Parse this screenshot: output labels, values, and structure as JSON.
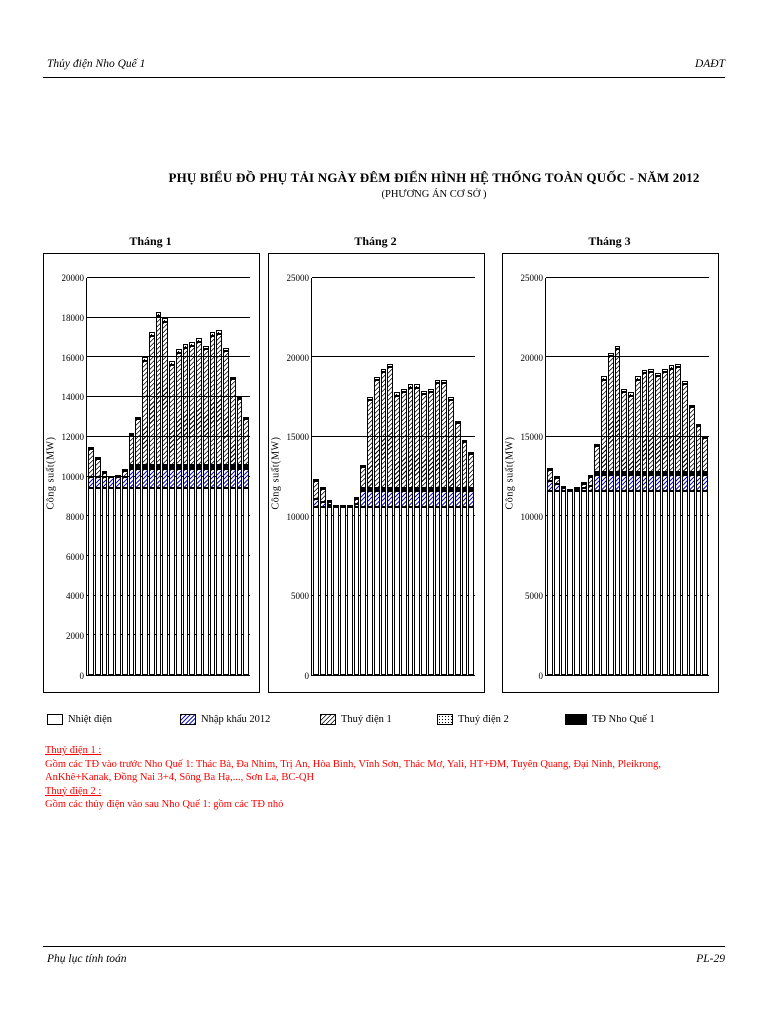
{
  "page": {
    "header_left": "Thủy điện Nho Quế 1",
    "header_right": "DAĐT",
    "title": "PHỤ BIỂU ĐỒ PHỤ TẢI NGÀY ĐÊM ĐIỂN HÌNH HỆ THỐNG TOÀN QUỐC - NĂM 2012",
    "subtitle": "(PHƯƠNG ÁN CƠ SỞ )",
    "footer_left": "Phụ lục tính toán",
    "footer_right": "PL-29"
  },
  "legend": [
    {
      "label": "Nhiệt điện",
      "pattern": "thermal"
    },
    {
      "label": "Nhập khẩu 2012",
      "pattern": "import",
      "color": "#1818c8"
    },
    {
      "label": "Thuỷ điện 1",
      "pattern": "hydro1"
    },
    {
      "label": "Thuỷ điện 2",
      "pattern": "hydro2"
    },
    {
      "label": "TĐ Nho Quế 1",
      "pattern": "nhoque",
      "color": "#000000"
    }
  ],
  "notes": [
    {
      "heading": "Thuỷ điện 1 :",
      "body": "Gồm các TĐ vào trước Nho Quế 1: Thác Bà, Đa Nhim, Trị An, Hòa Bình, Vĩnh Sơn, Thác Mơ, Yali, HT+ĐM, Tuyên Quang, Đại Ninh, Pleikrong,",
      "body2": " AnKhê+Kanak, Đồng Nai 3+4, Sông Ba Hạ,..., Sơn La, BC-QH"
    },
    {
      "heading": "Thuỷ điện 2 :",
      "body": "Gồm các thủy điện vào sau Nho Quế 1: gồm các TĐ nhỏ"
    }
  ],
  "chart_data": [
    {
      "type": "bar",
      "stacked": true,
      "title": "Tháng 1",
      "ylabel": "Công suất(MW)",
      "ylim": [
        0,
        20000
      ],
      "ytick_step": 2000,
      "grid": true,
      "x_labels_visible": false,
      "x": [
        1,
        2,
        3,
        4,
        5,
        6,
        7,
        8,
        9,
        10,
        11,
        12,
        13,
        14,
        15,
        16,
        17,
        18,
        19,
        20,
        21,
        22,
        23,
        24
      ],
      "series": [
        {
          "name": "Nhiệt điện",
          "pattern": "thermal",
          "values": [
            9400,
            9400,
            9400,
            9400,
            9400,
            9400,
            9400,
            9400,
            9400,
            9400,
            9400,
            9400,
            9400,
            9400,
            9400,
            9400,
            9400,
            9400,
            9400,
            9400,
            9400,
            9400,
            9400,
            9400
          ]
        },
        {
          "name": "Nhập khẩu 2012",
          "pattern": "import",
          "values": [
            600,
            600,
            600,
            600,
            600,
            600,
            1000,
            1000,
            1000,
            1000,
            1000,
            1000,
            1000,
            1000,
            1000,
            1000,
            1000,
            1000,
            1000,
            1000,
            1000,
            1000,
            1000,
            1000
          ]
        },
        {
          "name": "TĐ Nho Quế 1",
          "pattern": "nhoque",
          "values": [
            0,
            0,
            0,
            0,
            0,
            0,
            200,
            200,
            200,
            200,
            200,
            200,
            200,
            200,
            200,
            200,
            200,
            200,
            200,
            200,
            200,
            200,
            200,
            200
          ]
        },
        {
          "name": "Thuỷ điện 1",
          "pattern": "hydro1",
          "values": [
            1400,
            900,
            200,
            0,
            0,
            300,
            1500,
            2300,
            5200,
            6500,
            7500,
            7200,
            5000,
            5600,
            5900,
            6000,
            6200,
            5800,
            6500,
            6600,
            5700,
            4300,
            3300,
            2300
          ]
        },
        {
          "name": "Thuỷ điện 2",
          "pattern": "hydro2",
          "values": [
            100,
            100,
            100,
            0,
            100,
            100,
            100,
            100,
            200,
            200,
            200,
            200,
            200,
            200,
            200,
            200,
            200,
            200,
            200,
            200,
            200,
            100,
            100,
            100
          ]
        }
      ]
    },
    {
      "type": "bar",
      "stacked": true,
      "title": "Tháng 2",
      "ylabel": "Công suất(MW)",
      "ylim": [
        0,
        25000
      ],
      "ytick_step": 5000,
      "grid": true,
      "x_labels_visible": false,
      "x": [
        1,
        2,
        3,
        4,
        5,
        6,
        7,
        8,
        9,
        10,
        11,
        12,
        13,
        14,
        15,
        16,
        17,
        18,
        19,
        20,
        21,
        22,
        23,
        24
      ],
      "series": [
        {
          "name": "Nhiệt điện",
          "pattern": "thermal",
          "values": [
            10600,
            10600,
            10600,
            10600,
            10600,
            10600,
            10600,
            10600,
            10600,
            10600,
            10600,
            10600,
            10600,
            10600,
            10600,
            10600,
            10600,
            10600,
            10600,
            10600,
            10600,
            10600,
            10600,
            10600
          ]
        },
        {
          "name": "Nhập khẩu 2012",
          "pattern": "import",
          "values": [
            500,
            300,
            100,
            100,
            100,
            100,
            200,
            1000,
            1000,
            1000,
            1000,
            1000,
            1000,
            1000,
            1000,
            1000,
            1000,
            1000,
            1000,
            1000,
            1000,
            1000,
            1000,
            1000
          ]
        },
        {
          "name": "TĐ Nho Quế 1",
          "pattern": "nhoque",
          "values": [
            0,
            0,
            0,
            0,
            0,
            0,
            0,
            200,
            200,
            200,
            200,
            200,
            200,
            200,
            200,
            200,
            200,
            200,
            200,
            200,
            200,
            200,
            200,
            200
          ]
        },
        {
          "name": "Thuỷ điện 1",
          "pattern": "hydro1",
          "values": [
            1100,
            800,
            200,
            0,
            0,
            0,
            300,
            1300,
            5500,
            6800,
            7300,
            7600,
            5800,
            6000,
            6300,
            6300,
            5900,
            6000,
            6600,
            6600,
            5500,
            4100,
            2900,
            2100
          ]
        },
        {
          "name": "Thuỷ điện 2",
          "pattern": "hydro2",
          "values": [
            100,
            100,
            100,
            0,
            0,
            0,
            100,
            100,
            200,
            200,
            200,
            200,
            200,
            200,
            200,
            200,
            200,
            200,
            200,
            200,
            200,
            100,
            100,
            100
          ]
        }
      ]
    },
    {
      "type": "bar",
      "stacked": true,
      "title": "Tháng 3",
      "ylabel": "Công suất(MW)",
      "ylim": [
        0,
        25000
      ],
      "ytick_step": 5000,
      "grid": true,
      "x_labels_visible": false,
      "x": [
        1,
        2,
        3,
        4,
        5,
        6,
        7,
        8,
        9,
        10,
        11,
        12,
        13,
        14,
        15,
        16,
        17,
        18,
        19,
        20,
        21,
        22,
        23,
        24
      ],
      "series": [
        {
          "name": "Nhiệt điện",
          "pattern": "thermal",
          "values": [
            11600,
            11600,
            11600,
            11600,
            11600,
            11600,
            11600,
            11600,
            11600,
            11600,
            11600,
            11600,
            11600,
            11600,
            11600,
            11600,
            11600,
            11600,
            11600,
            11600,
            11600,
            11600,
            11600,
            11600
          ]
        },
        {
          "name": "Nhập khẩu 2012",
          "pattern": "import",
          "values": [
            600,
            400,
            200,
            100,
            100,
            200,
            300,
            1000,
            1000,
            1000,
            1000,
            1000,
            1000,
            1000,
            1000,
            1000,
            1000,
            1000,
            1000,
            1000,
            1000,
            1000,
            1000,
            1000
          ]
        },
        {
          "name": "TĐ Nho Quế 1",
          "pattern": "nhoque",
          "values": [
            0,
            0,
            0,
            0,
            0,
            0,
            0,
            200,
            200,
            200,
            200,
            200,
            200,
            200,
            200,
            200,
            200,
            200,
            200,
            200,
            200,
            200,
            200,
            200
          ]
        },
        {
          "name": "Thuỷ điện 1",
          "pattern": "hydro1",
          "values": [
            700,
            400,
            0,
            0,
            0,
            200,
            600,
            1600,
            5800,
            7300,
            7700,
            5000,
            4800,
            5800,
            6200,
            6300,
            6000,
            6300,
            6500,
            6600,
            5500,
            4100,
            2900,
            2100
          ]
        },
        {
          "name": "Thuỷ điện 2",
          "pattern": "hydro2",
          "values": [
            100,
            100,
            100,
            0,
            100,
            100,
            100,
            100,
            200,
            200,
            200,
            200,
            200,
            200,
            200,
            200,
            200,
            200,
            200,
            200,
            200,
            100,
            100,
            100
          ]
        }
      ]
    }
  ]
}
